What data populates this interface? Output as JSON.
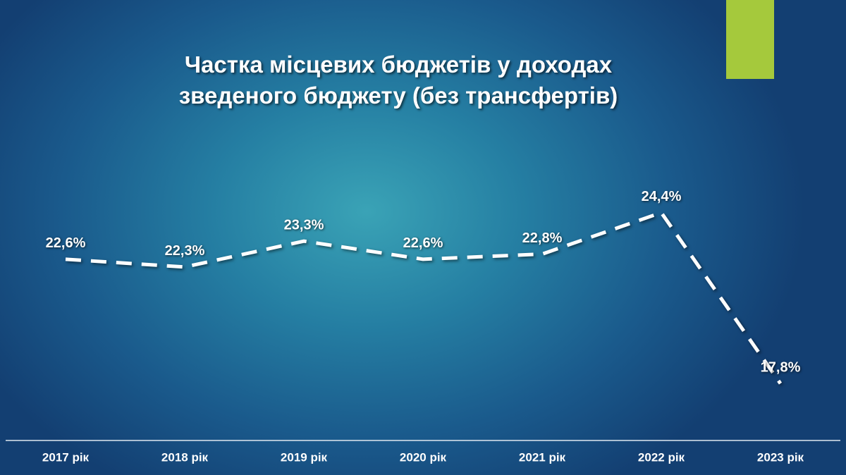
{
  "chart_data": {
    "type": "line",
    "title": "Частка місцевих бюджетів у доходах зведеного бюджету (без трансфертів)",
    "categories": [
      "2017 рік",
      "2018 рік",
      "2019 рік",
      "2020 рік",
      "2021 рік",
      "2022 рік",
      "2023 рік"
    ],
    "values": [
      22.6,
      22.3,
      23.3,
      22.6,
      22.8,
      24.4,
      17.8
    ],
    "value_labels": [
      "22,6%",
      "22,3%",
      "23,3%",
      "22,6%",
      "22,8%",
      "24,4%",
      "17,8%"
    ],
    "color": "#ffffff",
    "ylim": [
      15.6,
      30
    ]
  }
}
